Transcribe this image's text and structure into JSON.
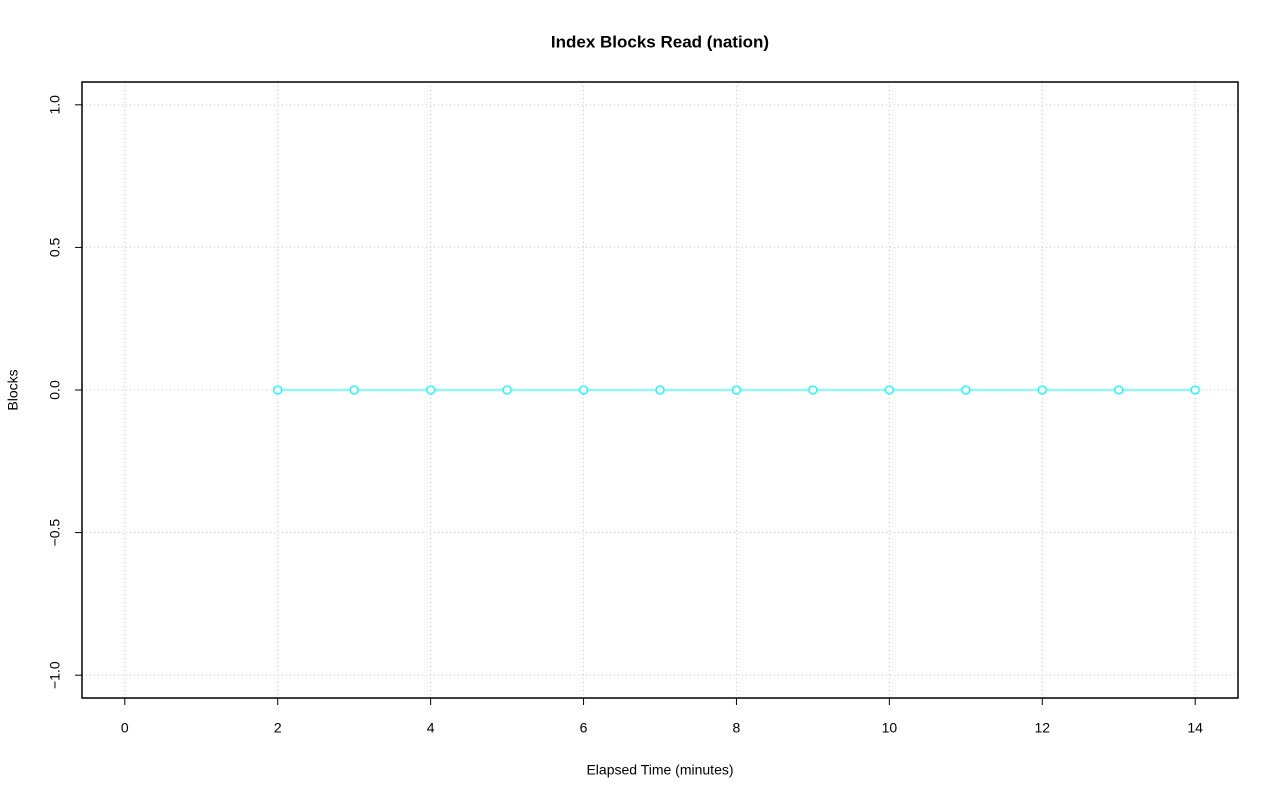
{
  "chart_data": {
    "type": "line",
    "title": "Index Blocks Read (nation)",
    "x_label": "Elapsed Time (minutes)",
    "y_label": "Blocks",
    "x": [
      2,
      3,
      4,
      5,
      6,
      7,
      8,
      9,
      10,
      11,
      12,
      13,
      14
    ],
    "values": [
      0,
      0,
      0,
      0,
      0,
      0,
      0,
      0,
      0,
      0,
      0,
      0,
      0
    ],
    "color": "#00ffff",
    "marker": "circle",
    "xlim": [
      -0.56,
      14.56
    ],
    "xticks": [
      0,
      2,
      4,
      6,
      8,
      10,
      12,
      14
    ],
    "ylim": [
      -1.08,
      1.08
    ],
    "yticks": [
      {
        "value": -1,
        "label": "−1.0"
      },
      {
        "value": -0.5,
        "label": "−0.5"
      },
      {
        "value": 0,
        "label": "0.0"
      },
      {
        "value": 0.5,
        "label": "0.5"
      },
      {
        "value": 1,
        "label": "1.0"
      }
    ],
    "grid": true
  }
}
